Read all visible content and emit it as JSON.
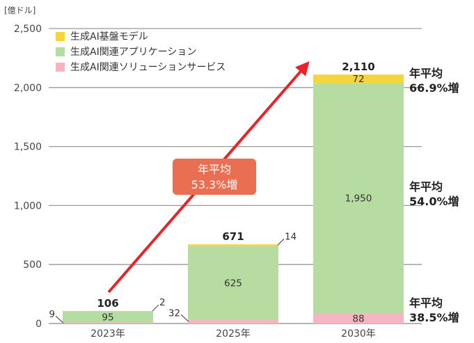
{
  "unit_label": "[億ドル]",
  "colors": {
    "foundation": "#f6d43c",
    "applications": "#b6dca2",
    "services": "#f6b5c0",
    "arrow": "#e8232a",
    "callout": "#ea6f52"
  },
  "chart_data": {
    "type": "bar",
    "stacked": true,
    "categories": [
      "2023年",
      "2025年",
      "2030年"
    ],
    "series": [
      {
        "name": "生成AI関連ソリューションサービス",
        "color_key": "services",
        "values": [
          9,
          32,
          88
        ]
      },
      {
        "name": "生成AI関連アプリケーション",
        "color_key": "applications",
        "values": [
          95,
          625,
          1950
        ]
      },
      {
        "name": "生成AI基盤モデル",
        "color_key": "foundation",
        "values": [
          2,
          14,
          72
        ]
      }
    ],
    "totals": [
      "106",
      "671",
      "2,110"
    ],
    "segment_labels": [
      {
        "category": 0,
        "series": 0,
        "text": "9",
        "pos": "outside-left"
      },
      {
        "category": 0,
        "series": 1,
        "text": "95",
        "pos": "inside"
      },
      {
        "category": 0,
        "series": 2,
        "text": "2",
        "pos": "outside-right"
      },
      {
        "category": 1,
        "series": 0,
        "text": "32",
        "pos": "outside-left"
      },
      {
        "category": 1,
        "series": 1,
        "text": "625",
        "pos": "inside"
      },
      {
        "category": 1,
        "series": 2,
        "text": "14",
        "pos": "outside-right"
      },
      {
        "category": 2,
        "series": 0,
        "text": "88",
        "pos": "inside"
      },
      {
        "category": 2,
        "series": 1,
        "text": "1,950",
        "pos": "inside"
      },
      {
        "category": 2,
        "series": 2,
        "text": "72",
        "pos": "inside"
      }
    ],
    "yticks": [
      {
        "value": 0,
        "label": "0"
      },
      {
        "value": 500,
        "label": "500"
      },
      {
        "value": 1000,
        "label": "1,000"
      },
      {
        "value": 1500,
        "label": "1,500"
      },
      {
        "value": 2000,
        "label": "2,000"
      },
      {
        "value": 2500,
        "label": "2,500"
      }
    ],
    "ylim": [
      0,
      2500
    ],
    "grid": true,
    "legend_position": "top-left",
    "legend_order": [
      2,
      1,
      0
    ],
    "callout": {
      "line1": "年平均",
      "line2": "53.3%増"
    },
    "cagr_labels": [
      {
        "series": 2,
        "line1": "年平均",
        "line2": "66.9%増"
      },
      {
        "series": 1,
        "line1": "年平均",
        "line2": "54.0%増"
      },
      {
        "series": 0,
        "line1": "年平均",
        "line2": "38.5%増"
      }
    ]
  }
}
